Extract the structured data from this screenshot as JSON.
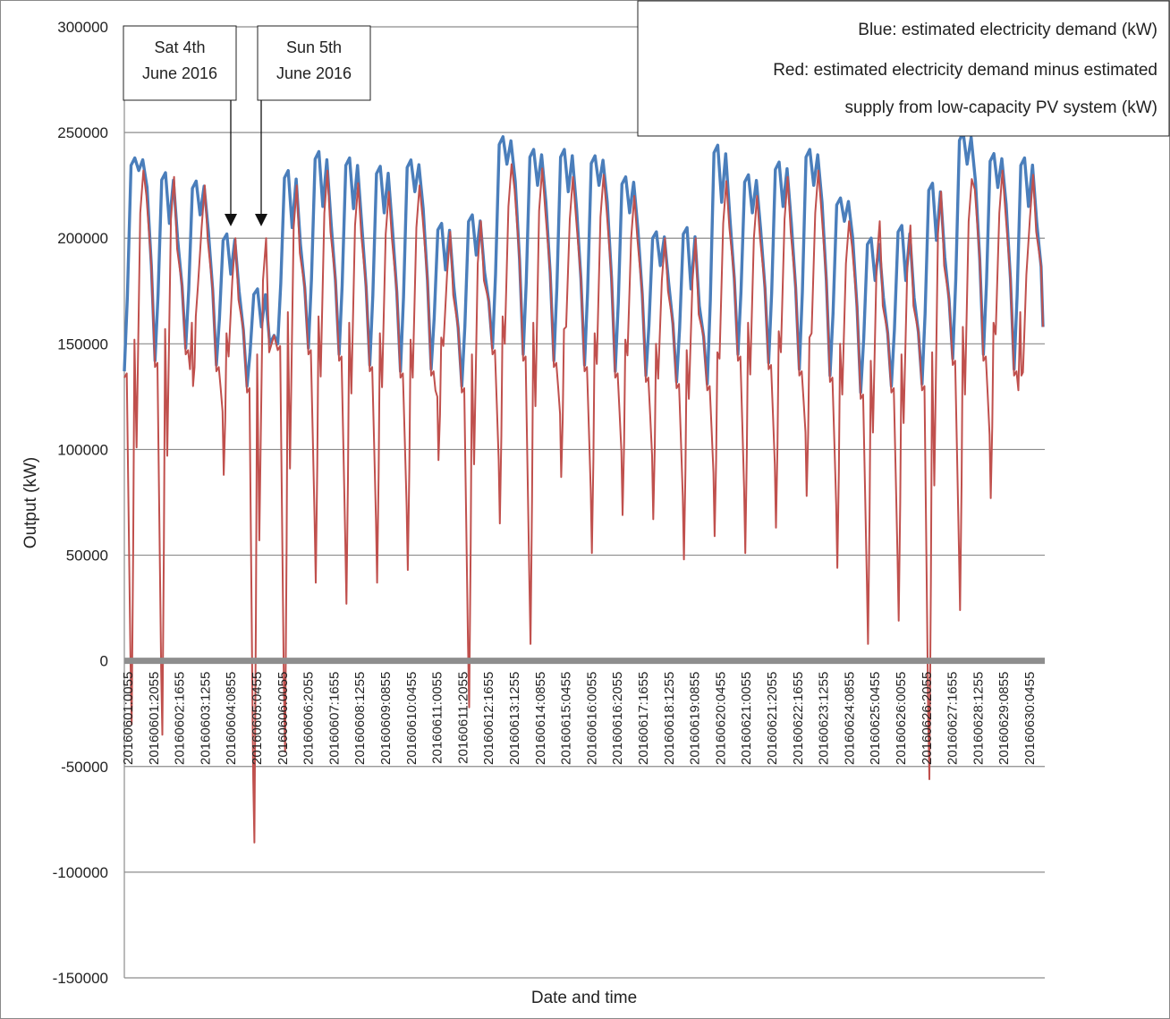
{
  "chart_data": {
    "type": "line",
    "title": "",
    "xlabel": "Date and time",
    "ylabel": "Output (kW)",
    "ylim": [
      -150000,
      300000
    ],
    "yticks": [
      300000,
      250000,
      200000,
      150000,
      100000,
      50000,
      0,
      -50000,
      -100000,
      -150000
    ],
    "grid": "horizontal",
    "x_tick_labels": [
      "20160601:0055",
      "20160601:2055",
      "20160602:1655",
      "20160603:1255",
      "20160604:0855",
      "20160605:0455",
      "20160606:0055",
      "20160606:2055",
      "20160607:1655",
      "20160608:1255",
      "20160609:0855",
      "20160610:0455",
      "20160611:0055",
      "20160611:2055",
      "20160612:1655",
      "20160613:1255",
      "20160614:0855",
      "20160615:0455",
      "20160616:0055",
      "20160616:2055",
      "20160617:1655",
      "20160618:1255",
      "20160619:0855",
      "20160620:0455",
      "20160621:0055",
      "20160621:2055",
      "20160622:1655",
      "20160623:1255",
      "20160624:0855",
      "20160625:0455",
      "20160626:0055",
      "20160626:2055",
      "20160627:1655",
      "20160628:1255",
      "20160629:0855",
      "20160630:0455"
    ],
    "x_days": [
      "1",
      "2",
      "3",
      "4",
      "5",
      "6",
      "7",
      "8",
      "9",
      "10",
      "11",
      "12",
      "13",
      "14",
      "15",
      "16",
      "17",
      "18",
      "19",
      "20",
      "21",
      "22",
      "23",
      "24",
      "25",
      "26",
      "27",
      "28",
      "29",
      "30"
    ],
    "series": [
      {
        "name": "Blue: estimated electricity demand (kW)",
        "color": "#4a7ebb",
        "daily_min": [
          137000,
          142000,
          148000,
          140000,
          130000,
          150000,
          148000,
          145000,
          140000,
          137000,
          138000,
          130000,
          148000,
          145000,
          142000,
          140000,
          137000,
          135000,
          132000,
          131000,
          145000,
          141000,
          138000,
          135000,
          127000,
          130000,
          131000,
          143000,
          145000,
          138000
        ],
        "daily_midday": [
          232000,
          207000,
          211000,
          183000,
          158000,
          205000,
          215000,
          214000,
          212000,
          222000,
          185000,
          192000,
          235000,
          225000,
          222000,
          225000,
          212000,
          187000,
          176000,
          217000,
          212000,
          215000,
          225000,
          208000,
          180000,
          180000,
          199000,
          235000,
          224000,
          215000
        ],
        "daily_peak": [
          238000,
          231000,
          227000,
          202000,
          176000,
          232000,
          241000,
          238000,
          234000,
          237000,
          207000,
          211000,
          248000,
          242000,
          242000,
          239000,
          229000,
          203000,
          205000,
          244000,
          230000,
          236000,
          242000,
          219000,
          200000,
          206000,
          226000,
          250000,
          240000,
          238000
        ]
      },
      {
        "name": "Red: estimated electricity demand minus estimated supply from low-capacity PV system (kW)",
        "color": "#c0504d",
        "daily_min": [
          -30000,
          -35000,
          130000,
          88000,
          -86000,
          -43000,
          37000,
          27000,
          37000,
          43000,
          95000,
          -22000,
          65000,
          8000,
          87000,
          51000,
          69000,
          67000,
          48000,
          59000,
          51000,
          63000,
          78000,
          44000,
          8000,
          19000,
          -56000,
          24000,
          77000,
          135000
        ],
        "daily_peak": [
          232000,
          229000,
          225000,
          200000,
          200000,
          225000,
          232000,
          226000,
          222000,
          225000,
          203000,
          208000,
          235000,
          233000,
          229000,
          230000,
          220000,
          200000,
          200000,
          227000,
          220000,
          229000,
          232000,
          208000,
          208000,
          206000,
          222000,
          228000,
          232000,
          230000
        ]
      }
    ],
    "legend": {
      "placement": "top-right",
      "lines": [
        "Blue: estimated electricity demand (kW)",
        "Red: estimated electricity demand minus estimated",
        "supply from low-capacity PV system (kW)"
      ]
    },
    "annotations": [
      {
        "lines": [
          "Sat 4th",
          "June 2016"
        ],
        "target": "20160604"
      },
      {
        "lines": [
          "Sun 5th",
          "June 2016"
        ],
        "target": "20160605"
      }
    ]
  }
}
